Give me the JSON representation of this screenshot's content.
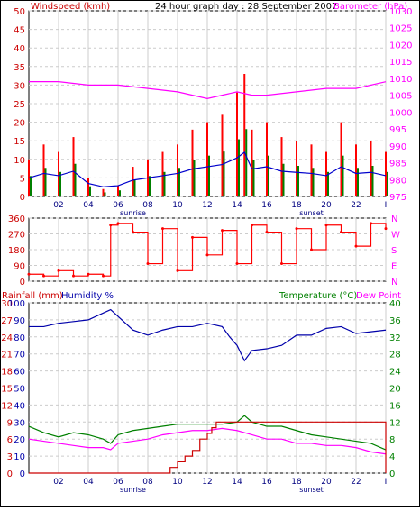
{
  "header": {
    "wind_title": "Windspeed (kmh)",
    "center_title": "24 hour graph day : 28 September 2007",
    "baro_title": "Barometer (hPa)"
  },
  "bottom_header": {
    "rain_title": "Rainfall (mm)",
    "humidity_title": "Humidity %",
    "temp_title": "Temperature (°C)",
    "dew_title": "Dew Point"
  },
  "time_axis": {
    "labels": [
      "02",
      "04",
      "06",
      "08",
      "10",
      "12",
      "14",
      "16",
      "18",
      "20",
      "22",
      "I"
    ],
    "sunrise_label": "sunrise",
    "sunset_label": "sunset"
  },
  "colors": {
    "wind_gust": "#ff0000",
    "wind_avg": "#008000",
    "wind_dir_line": "#0000cc",
    "barometer": "#ff00ff",
    "direction": "#ff0000",
    "humidity": "#0000aa",
    "temperature": "#008000",
    "dewpoint": "#ff00ff",
    "rainfall": "#cc0000",
    "grid": "#cccccc",
    "axis_text_left": "#cc0000",
    "axis_text_right_top": "#ff00ff",
    "axis_text_right_bottom": "#008000",
    "axis_text_humidity": "#0000aa"
  },
  "chart_data": [
    {
      "type": "line",
      "name": "wind-barometer",
      "x_range": [
        0,
        24
      ],
      "left_axis": {
        "label": "Windspeed (kmh)",
        "ticks": [
          0,
          5,
          10,
          15,
          20,
          25,
          30,
          35,
          40,
          45,
          50
        ],
        "range": [
          0,
          50
        ]
      },
      "right_axis": {
        "label": "Barometer (hPa)",
        "ticks": [
          975,
          980,
          985,
          990,
          995,
          1000,
          1005,
          1010,
          1015,
          1020,
          1025,
          1030
        ],
        "range": [
          975,
          1030
        ]
      },
      "series": [
        {
          "name": "Windspeed (kmh)",
          "axis": "left",
          "x": [
            0,
            1,
            2,
            3,
            4,
            5,
            6,
            7,
            8,
            9,
            10,
            11,
            12,
            13,
            14,
            14.5,
            15,
            16,
            17,
            18,
            19,
            20,
            21,
            22,
            23,
            24
          ],
          "values": [
            10,
            14,
            12,
            16,
            5,
            2,
            3,
            8,
            10,
            12,
            14,
            18,
            20,
            22,
            28,
            33,
            18,
            20,
            16,
            15,
            14,
            12,
            20,
            14,
            15,
            12
          ]
        },
        {
          "name": "Barometer (hPa)",
          "axis": "right",
          "x": [
            0,
            2,
            4,
            6,
            8,
            10,
            11,
            12,
            13,
            14,
            15,
            16,
            18,
            20,
            22,
            24
          ],
          "values": [
            1009,
            1009,
            1008,
            1008,
            1007,
            1006,
            1005,
            1004,
            1005,
            1006,
            1005,
            1005,
            1006,
            1007,
            1007,
            1009
          ]
        }
      ]
    },
    {
      "type": "scatter",
      "name": "wind-direction",
      "x_range": [
        0,
        24
      ],
      "left_axis": {
        "ticks": [
          0,
          90,
          180,
          270,
          360
        ],
        "range": [
          0,
          360
        ]
      },
      "right_axis": {
        "ticks": [
          "N",
          "E",
          "S",
          "W",
          "N"
        ]
      },
      "series": [
        {
          "name": "Wind direction",
          "x": [
            0,
            1,
            2,
            3,
            4,
            5,
            5.5,
            6,
            7,
            8,
            9,
            10,
            11,
            12,
            13,
            14,
            15,
            16,
            17,
            18,
            19,
            20,
            21,
            22,
            23,
            24
          ],
          "values": [
            40,
            30,
            60,
            30,
            40,
            30,
            320,
            330,
            280,
            100,
            300,
            60,
            250,
            150,
            290,
            100,
            320,
            280,
            100,
            300,
            180,
            320,
            280,
            200,
            330,
            300
          ]
        }
      ]
    },
    {
      "type": "line",
      "name": "temp-humidity-rain",
      "x_range": [
        0,
        24
      ],
      "rain_axis": {
        "label": "Rainfall (mm)",
        "ticks": [
          0,
          3,
          6,
          9,
          12,
          15,
          18,
          21,
          24,
          27,
          30
        ],
        "range": [
          0,
          30
        ]
      },
      "humidity_axis": {
        "label": "Humidity %",
        "ticks": [
          0,
          10,
          20,
          30,
          40,
          50,
          60,
          70,
          80,
          90,
          100
        ],
        "range": [
          0,
          100
        ]
      },
      "temp_axis": {
        "label": "Temperature (°C)",
        "ticks": [
          0,
          4,
          8,
          12,
          16,
          20,
          24,
          28,
          32,
          36,
          40
        ],
        "range": [
          0,
          40
        ]
      },
      "series": [
        {
          "name": "Humidity %",
          "axis": "humidity",
          "x": [
            0,
            1,
            2,
            3,
            4,
            5,
            5.5,
            6,
            7,
            8,
            9,
            10,
            11,
            12,
            13,
            13.5,
            14,
            14.5,
            15,
            16,
            17,
            18,
            19,
            20,
            21,
            22,
            23,
            24
          ],
          "values": [
            86,
            86,
            88,
            89,
            90,
            94,
            96,
            92,
            84,
            81,
            84,
            86,
            86,
            88,
            86,
            80,
            75,
            66,
            72,
            73,
            75,
            81,
            81,
            85,
            86,
            82,
            83,
            84
          ]
        },
        {
          "name": "Temperature (°C)",
          "axis": "temp",
          "x": [
            0,
            1,
            2,
            3,
            4,
            5,
            5.5,
            6,
            7,
            8,
            9,
            10,
            11,
            12,
            13,
            14,
            14.5,
            15,
            16,
            17,
            18,
            19,
            20,
            21,
            22,
            23,
            24
          ],
          "values": [
            11,
            9.5,
            8.5,
            9.5,
            9,
            8,
            7,
            9,
            10,
            10.5,
            11,
            11.5,
            11.5,
            11.5,
            11.5,
            12,
            13.5,
            12,
            11,
            11,
            10,
            9,
            8.5,
            8,
            7.5,
            7,
            5.5
          ]
        },
        {
          "name": "Dew Point",
          "axis": "temp",
          "x": [
            0,
            1,
            2,
            3,
            4,
            5,
            5.5,
            6,
            7,
            8,
            9,
            10,
            11,
            12,
            13,
            14,
            15,
            16,
            17,
            18,
            19,
            20,
            21,
            22,
            23,
            24
          ],
          "values": [
            8,
            7.5,
            7,
            6.5,
            6,
            6,
            5.5,
            7,
            7.5,
            8,
            9,
            9.5,
            10,
            10,
            10.5,
            10,
            9,
            8,
            8,
            7,
            7,
            6.5,
            6.5,
            6,
            5,
            4.5
          ]
        },
        {
          "name": "Rainfall (mm)",
          "axis": "rain",
          "x": [
            0,
            1,
            2,
            3,
            4,
            5,
            6,
            7,
            8,
            9,
            9.5,
            10,
            10.5,
            11,
            11.5,
            12,
            12.3,
            12.6,
            13,
            14,
            15,
            16,
            17,
            18,
            19,
            20,
            21,
            22,
            23,
            24
          ],
          "values": [
            0,
            0,
            0,
            0,
            0,
            0,
            0,
            0,
            0,
            0,
            1,
            2,
            3,
            4,
            6,
            7,
            8,
            9,
            9,
            9,
            9,
            9,
            9,
            9,
            9,
            9,
            9,
            9,
            9,
            0
          ]
        }
      ]
    }
  ]
}
